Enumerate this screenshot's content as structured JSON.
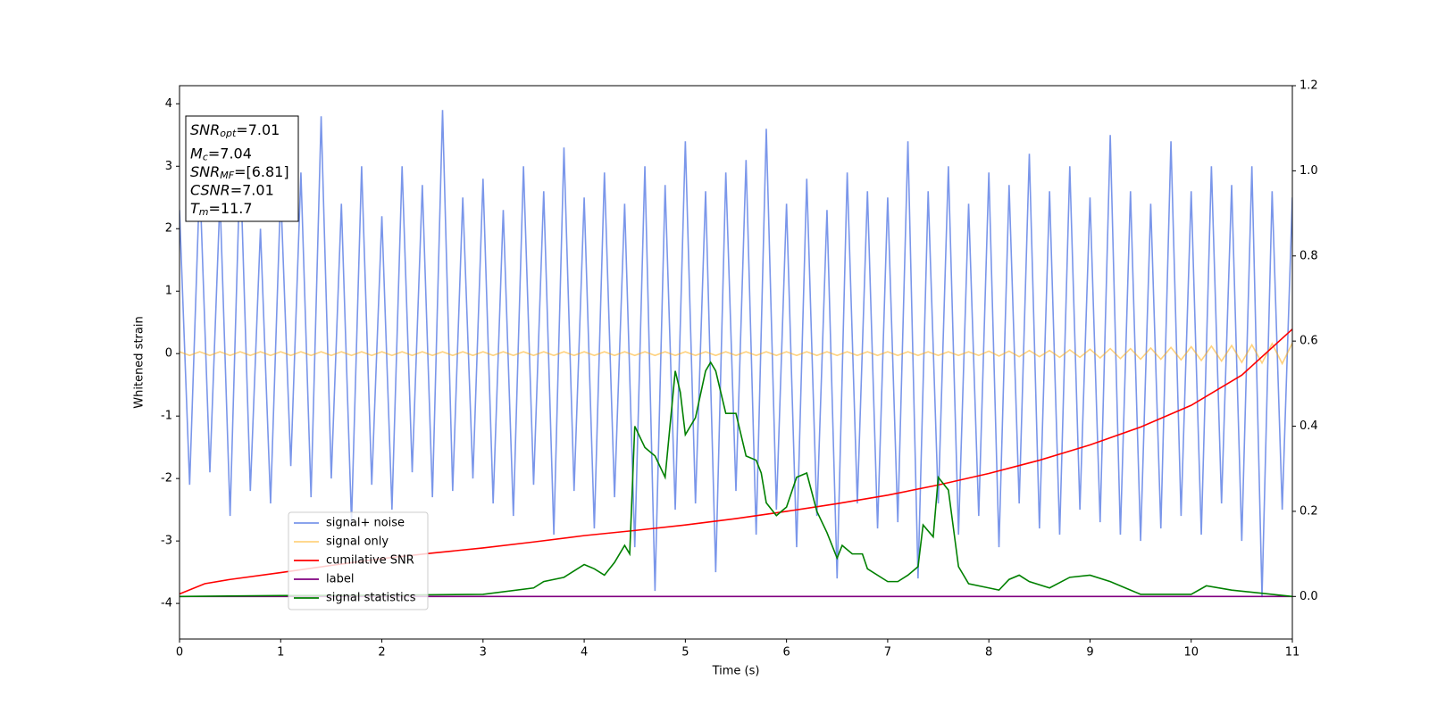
{
  "chart_data": {
    "type": "line",
    "xlabel": "Time (s)",
    "ylabel": "Whitened strain",
    "xlim": [
      0,
      11
    ],
    "xticks": [
      0,
      1,
      2,
      3,
      4,
      5,
      6,
      7,
      8,
      9,
      10,
      11
    ],
    "ylim": [
      -4.57,
      4.29
    ],
    "yticks": [
      -4,
      -3,
      -2,
      -1,
      0,
      1,
      2,
      3,
      4
    ],
    "y2lim": [
      -0.1,
      1.2
    ],
    "y2ticks": [
      {
        "value": 0,
        "label": "0.0"
      },
      {
        "value": 0.2,
        "label": "0.2"
      },
      {
        "value": 0.4,
        "label": "0.4"
      },
      {
        "value": 0.6,
        "label": "0.6"
      },
      {
        "value": 0.8,
        "label": "0.8"
      },
      {
        "value": 1,
        "label": "1.0"
      },
      {
        "value": 1.2,
        "label": "1.2"
      }
    ],
    "x": [
      0,
      0.1,
      0.2,
      0.3,
      0.4,
      0.5,
      0.6,
      0.7,
      0.8,
      0.9,
      1,
      1.1,
      1.2,
      1.3,
      1.4,
      1.5,
      1.6,
      1.7,
      1.8,
      1.9,
      2,
      2.1,
      2.2,
      2.3,
      2.4,
      2.5,
      2.6,
      2.7,
      2.8,
      2.9,
      3,
      3.1,
      3.2,
      3.3,
      3.4,
      3.5,
      3.6,
      3.7,
      3.8,
      3.9,
      4,
      4.1,
      4.2,
      4.3,
      4.4,
      4.5,
      4.6,
      4.7,
      4.8,
      4.9,
      5,
      5.1,
      5.2,
      5.3,
      5.4,
      5.5,
      5.6,
      5.7,
      5.8,
      5.9,
      6,
      6.1,
      6.2,
      6.3,
      6.4,
      6.5,
      6.6,
      6.7,
      6.8,
      6.9,
      7,
      7.1,
      7.2,
      7.3,
      7.4,
      7.5,
      7.6,
      7.7,
      7.8,
      7.9,
      8,
      8.1,
      8.2,
      8.3,
      8.4,
      8.5,
      8.6,
      8.7,
      8.8,
      8.9,
      9,
      9.1,
      9.2,
      9.3,
      9.4,
      9.5,
      9.6,
      9.7,
      9.8,
      9.9,
      10,
      10.1,
      10.2,
      10.3,
      10.4,
      10.5,
      10.6,
      10.7,
      10.8,
      10.9,
      11
    ],
    "series": [
      {
        "name": "signal+ noise",
        "color": "royalblue",
        "alpha": 0.7,
        "values": [
          2.3,
          -2.1,
          2.8,
          -1.9,
          2.5,
          -2.6,
          3.1,
          -2.2,
          2.0,
          -2.4,
          2.6,
          -1.8,
          2.9,
          -2.3,
          3.8,
          -2.0,
          2.4,
          -2.7,
          3.0,
          -2.1,
          2.2,
          -2.5,
          3.0,
          -1.9,
          2.7,
          -2.3,
          3.9,
          -2.2,
          2.5,
          -2.0,
          2.8,
          -2.4,
          2.3,
          -2.6,
          3.0,
          -2.1,
          2.6,
          -2.9,
          3.3,
          -2.2,
          2.5,
          -2.8,
          2.9,
          -2.3,
          2.4,
          -3.1,
          3.0,
          -3.8,
          2.7,
          -2.5,
          3.4,
          -2.4,
          2.6,
          -3.5,
          2.9,
          -2.2,
          3.1,
          -2.9,
          3.6,
          -2.5,
          2.4,
          -3.1,
          2.8,
          -2.6,
          2.3,
          -3.6,
          2.9,
          -2.4,
          2.6,
          -2.8,
          2.5,
          -2.7,
          3.4,
          -3.6,
          2.6,
          -2.4,
          3.0,
          -2.9,
          2.4,
          -2.6,
          2.9,
          -3.1,
          2.7,
          -2.4,
          3.2,
          -2.8,
          2.6,
          -2.9,
          3.0,
          -2.5,
          2.5,
          -2.7,
          3.5,
          -2.9,
          2.6,
          -3.0,
          2.4,
          -2.8,
          3.4,
          -2.6,
          2.6,
          -2.9,
          3.0,
          -2.4,
          2.7,
          -3.0,
          3.0,
          -3.9,
          2.6,
          -2.5,
          2.5
        ]
      },
      {
        "name": "signal only",
        "color": "orange",
        "alpha": 0.5,
        "values": [
          0.03,
          -0.03,
          0.03,
          -0.03,
          0.03,
          -0.03,
          0.03,
          -0.03,
          0.03,
          -0.03,
          0.03,
          -0.03,
          0.03,
          -0.03,
          0.03,
          -0.03,
          0.03,
          -0.03,
          0.03,
          -0.03,
          0.03,
          -0.03,
          0.03,
          -0.03,
          0.03,
          -0.03,
          0.03,
          -0.03,
          0.03,
          -0.03,
          0.03,
          -0.03,
          0.03,
          -0.03,
          0.03,
          -0.03,
          0.03,
          -0.03,
          0.03,
          -0.03,
          0.03,
          -0.03,
          0.03,
          -0.03,
          0.03,
          -0.03,
          0.03,
          -0.03,
          0.03,
          -0.03,
          0.03,
          -0.03,
          0.03,
          -0.03,
          0.03,
          -0.03,
          0.03,
          -0.03,
          0.03,
          -0.03,
          0.03,
          -0.03,
          0.03,
          -0.03,
          0.03,
          -0.03,
          0.03,
          -0.03,
          0.03,
          -0.03,
          0.03,
          -0.03,
          0.03,
          -0.03,
          0.03,
          -0.03,
          0.03,
          -0.03,
          0.03,
          -0.03,
          0.04,
          -0.04,
          0.04,
          -0.05,
          0.05,
          -0.05,
          0.05,
          -0.06,
          0.06,
          -0.06,
          0.07,
          -0.07,
          0.08,
          -0.08,
          0.08,
          -0.09,
          0.09,
          -0.09,
          0.1,
          -0.1,
          0.11,
          -0.11,
          0.12,
          -0.12,
          0.13,
          -0.14,
          0.14,
          -0.15,
          0.16,
          -0.16,
          0.17
        ]
      },
      {
        "name": "cumilative SNR",
        "color": "red",
        "axis": "y2",
        "x": [
          0,
          0.25,
          0.5,
          1,
          1.5,
          2,
          2.5,
          3,
          3.5,
          4,
          4.5,
          5,
          5.5,
          6,
          6.5,
          7,
          7.5,
          8,
          8.5,
          9,
          9.5,
          10,
          10.5,
          11
        ],
        "values": [
          0.006,
          0.03,
          0.04,
          0.056,
          0.073,
          0.089,
          0.102,
          0.114,
          0.128,
          0.143,
          0.155,
          0.168,
          0.183,
          0.2,
          0.218,
          0.238,
          0.262,
          0.289,
          0.32,
          0.356,
          0.398,
          0.449,
          0.52,
          0.628
        ]
      },
      {
        "name": "label",
        "color": "purple",
        "axis": "y2",
        "x": [
          0,
          11
        ],
        "values": [
          0,
          0
        ]
      },
      {
        "name": "signal statistics",
        "color": "green",
        "axis": "y2",
        "x": [
          0,
          1,
          2,
          3,
          3.5,
          3.6,
          3.8,
          3.9,
          4.0,
          4.1,
          4.2,
          4.3,
          4.4,
          4.45,
          4.5,
          4.6,
          4.7,
          4.8,
          4.9,
          4.95,
          5.0,
          5.1,
          5.2,
          5.25,
          5.3,
          5.4,
          5.5,
          5.6,
          5.7,
          5.75,
          5.8,
          5.9,
          5.95,
          6.0,
          6.1,
          6.2,
          6.3,
          6.4,
          6.5,
          6.55,
          6.65,
          6.75,
          6.8,
          7.0,
          7.1,
          7.2,
          7.3,
          7.35,
          7.45,
          7.5,
          7.6,
          7.7,
          7.8,
          8.0,
          8.1,
          8.2,
          8.3,
          8.4,
          8.6,
          8.8,
          9.0,
          9.2,
          9.5,
          10,
          10.15,
          10.4,
          10.8,
          11
        ],
        "values": [
          0,
          0.002,
          0.003,
          0.005,
          0.02,
          0.035,
          0.045,
          0.06,
          0.075,
          0.065,
          0.05,
          0.08,
          0.12,
          0.1,
          0.4,
          0.35,
          0.33,
          0.28,
          0.53,
          0.48,
          0.38,
          0.42,
          0.53,
          0.55,
          0.53,
          0.43,
          0.43,
          0.33,
          0.32,
          0.29,
          0.22,
          0.19,
          0.2,
          0.21,
          0.28,
          0.29,
          0.2,
          0.15,
          0.09,
          0.12,
          0.1,
          0.1,
          0.065,
          0.035,
          0.035,
          0.05,
          0.07,
          0.168,
          0.14,
          0.28,
          0.25,
          0.07,
          0.03,
          0.02,
          0.015,
          0.04,
          0.05,
          0.035,
          0.02,
          0.045,
          0.05,
          0.035,
          0.005,
          0.005,
          0.025,
          0.015,
          0.005,
          0
        ]
      }
    ],
    "annotations": [
      {
        "text": "SNR",
        "sub": "opt",
        "rest": "=7.01"
      },
      {
        "text": "M",
        "sub": "c",
        "rest": "=7.04"
      },
      {
        "text": "SNR",
        "sub": "MF",
        "rest": "=[6.81]"
      },
      {
        "text": "CSNR",
        "rest": "=7.01"
      },
      {
        "text": "T",
        "sub": "m",
        "rest": "=11.7"
      }
    ]
  }
}
